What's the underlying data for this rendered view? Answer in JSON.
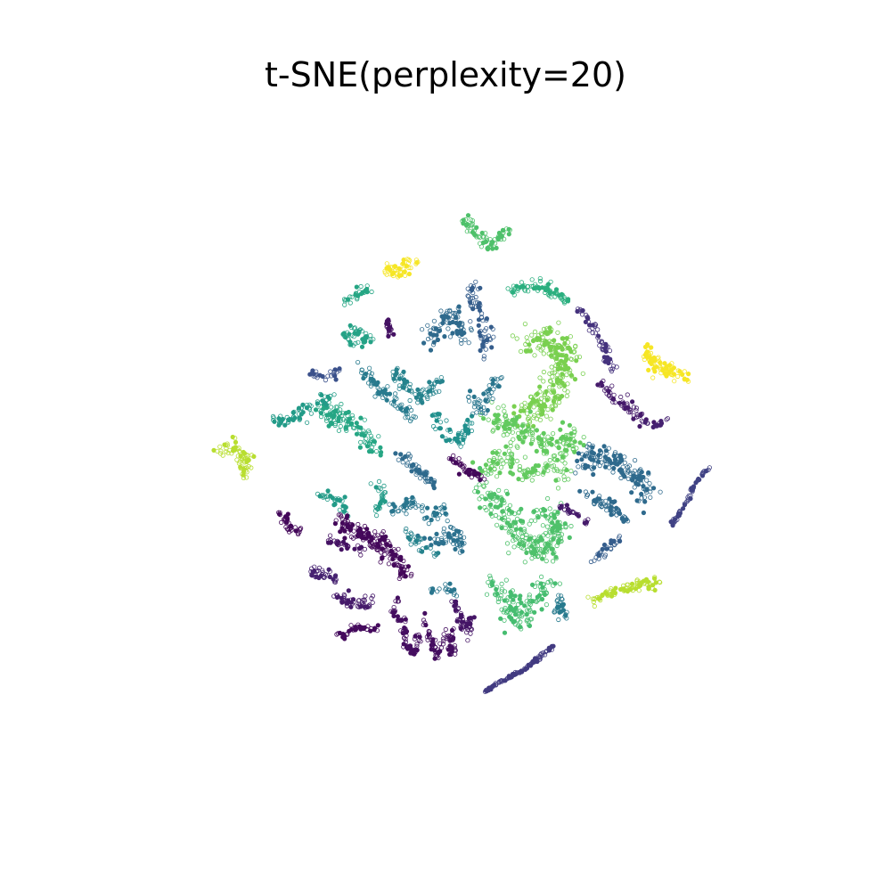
{
  "chart_data": {
    "type": "scatter",
    "title": "t-SNE(perplexity=20)",
    "xlabel": "",
    "ylabel": "",
    "axes_visible": false,
    "grid": false,
    "legend": "none",
    "xlim": [
      0,
      100
    ],
    "ylim": [
      0,
      100
    ],
    "colormap": "viridis",
    "point_style": "hollow-edge small markers",
    "clusters": [
      {
        "label_index": 0.72,
        "path": [
          [
            51.0,
            84.5
          ],
          [
            53.0,
            82.0
          ],
          [
            55.0,
            80.5
          ],
          [
            57.5,
            83.0
          ]
        ],
        "count": 70,
        "spread": 0.9
      },
      {
        "label_index": 0.99,
        "path": [
          [
            39.5,
            77.5
          ],
          [
            41.5,
            76.5
          ],
          [
            44.0,
            78.5
          ]
        ],
        "count": 45,
        "spread": 1.2
      },
      {
        "label_index": 0.6,
        "path": [
          [
            33.5,
            72.0
          ],
          [
            35.5,
            73.5
          ],
          [
            37.5,
            74.5
          ]
        ],
        "count": 25,
        "spread": 0.8
      },
      {
        "label_index": 0.58,
        "path": [
          [
            33.5,
            67.5
          ],
          [
            35.5,
            68.5
          ],
          [
            37.5,
            67.0
          ],
          [
            35.0,
            66.5
          ]
        ],
        "count": 50,
        "spread": 1.0
      },
      {
        "label_index": 0.05,
        "path": [
          [
            40.0,
            70.0
          ],
          [
            40.5,
            67.5
          ]
        ],
        "count": 25,
        "spread": 0.4
      },
      {
        "label_index": 0.64,
        "path": [
          [
            58.0,
            74.0
          ],
          [
            61.5,
            75.0
          ],
          [
            64.5,
            73.5
          ],
          [
            66.0,
            72.5
          ]
        ],
        "count": 70,
        "spread": 1.0
      },
      {
        "label_index": 0.15,
        "path": [
          [
            67.5,
            71.5
          ],
          [
            70.0,
            68.5
          ],
          [
            71.5,
            65.0
          ],
          [
            73.0,
            62.0
          ]
        ],
        "count": 55,
        "spread": 0.9
      },
      {
        "label_index": 0.08,
        "path": [
          [
            71.0,
            60.5
          ],
          [
            73.0,
            58.5
          ],
          [
            75.5,
            56.5
          ],
          [
            78.0,
            55.0
          ]
        ],
        "count": 55,
        "spread": 1.0
      },
      {
        "label_index": 0.99,
        "path": [
          [
            77.0,
            65.5
          ],
          [
            79.0,
            63.0
          ],
          [
            81.5,
            62.0
          ],
          [
            83.5,
            61.5
          ]
        ],
        "count": 85,
        "spread": 1.3
      },
      {
        "label_index": 0.9,
        "path": [
          [
            16.0,
            50.5
          ],
          [
            18.0,
            52.0
          ],
          [
            19.5,
            49.5
          ],
          [
            19.0,
            47.0
          ]
        ],
        "count": 65,
        "spread": 1.1
      },
      {
        "label_index": 0.3,
        "path": [
          [
            52.0,
            74.5
          ],
          [
            53.0,
            71.5
          ],
          [
            54.5,
            68.0
          ],
          [
            53.5,
            65.0
          ]
        ],
        "count": 65,
        "spread": 1.4
      },
      {
        "label_index": 0.35,
        "path": [
          [
            45.5,
            66.5
          ],
          [
            47.5,
            69.0
          ],
          [
            49.5,
            70.5
          ],
          [
            51.0,
            67.0
          ]
        ],
        "count": 80,
        "spread": 1.6
      },
      {
        "label_index": 0.8,
        "path": [
          [
            60.0,
            66.5
          ],
          [
            63.5,
            67.0
          ],
          [
            66.0,
            65.0
          ],
          [
            65.0,
            61.0
          ],
          [
            62.5,
            57.5
          ],
          [
            59.5,
            55.5
          ]
        ],
        "count": 260,
        "spread": 2.6
      },
      {
        "label_index": 0.76,
        "path": [
          [
            55.0,
            56.5
          ],
          [
            58.0,
            54.0
          ],
          [
            61.0,
            53.0
          ],
          [
            64.5,
            51.0
          ],
          [
            67.5,
            53.5
          ]
        ],
        "count": 170,
        "spread": 2.2
      },
      {
        "label_index": 0.76,
        "path": [
          [
            54.0,
            48.0
          ],
          [
            57.0,
            50.0
          ],
          [
            60.0,
            47.5
          ],
          [
            63.5,
            49.0
          ],
          [
            66.0,
            46.5
          ]
        ],
        "count": 110,
        "spread": 1.8
      },
      {
        "label_index": 0.72,
        "path": [
          [
            54.0,
            45.0
          ],
          [
            57.0,
            42.0
          ],
          [
            59.5,
            38.0
          ],
          [
            62.5,
            36.0
          ],
          [
            64.5,
            39.5
          ],
          [
            62.0,
            42.5
          ]
        ],
        "count": 250,
        "spread": 2.4
      },
      {
        "label_index": 0.7,
        "path": [
          [
            55.0,
            32.0
          ],
          [
            57.5,
            29.0
          ],
          [
            58.5,
            25.5
          ],
          [
            61.5,
            29.5
          ],
          [
            63.5,
            32.0
          ]
        ],
        "count": 140,
        "spread": 1.9
      },
      {
        "label_index": 0.6,
        "path": [
          [
            30.0,
            57.0
          ],
          [
            33.0,
            55.5
          ],
          [
            36.0,
            54.0
          ],
          [
            38.0,
            51.0
          ]
        ],
        "count": 110,
        "spread": 1.6
      },
      {
        "label_index": 0.55,
        "path": [
          [
            23.5,
            54.5
          ],
          [
            26.0,
            55.5
          ],
          [
            29.5,
            57.5
          ],
          [
            32.0,
            58.5
          ]
        ],
        "count": 60,
        "spread": 1.2
      },
      {
        "label_index": 0.42,
        "path": [
          [
            36.0,
            63.0
          ],
          [
            38.5,
            60.0
          ],
          [
            41.0,
            58.0
          ],
          [
            44.0,
            55.5
          ]
        ],
        "count": 75,
        "spread": 1.1
      },
      {
        "label_index": 0.45,
        "path": [
          [
            41.0,
            62.5
          ],
          [
            43.5,
            59.0
          ],
          [
            45.5,
            58.5
          ],
          [
            47.5,
            61.5
          ]
        ],
        "count": 70,
        "spread": 1.2
      },
      {
        "label_index": 0.5,
        "path": [
          [
            46.5,
            56.0
          ],
          [
            48.5,
            53.5
          ],
          [
            50.5,
            52.0
          ],
          [
            52.0,
            55.0
          ]
        ],
        "count": 55,
        "spread": 1.0
      },
      {
        "label_index": 0.4,
        "path": [
          [
            51.5,
            59.0
          ],
          [
            53.5,
            56.5
          ],
          [
            55.0,
            59.5
          ],
          [
            56.5,
            61.5
          ]
        ],
        "count": 50,
        "spread": 1.0
      },
      {
        "label_index": 0.25,
        "path": [
          [
            29.0,
            62.0
          ],
          [
            31.0,
            61.5
          ],
          [
            33.0,
            62.5
          ]
        ],
        "count": 25,
        "spread": 0.7
      },
      {
        "label_index": 0.02,
        "path": [
          [
            49.0,
            50.0
          ],
          [
            51.5,
            48.0
          ],
          [
            53.5,
            47.0
          ]
        ],
        "count": 45,
        "spread": 0.7
      },
      {
        "label_index": 0.35,
        "path": [
          [
            42.0,
            50.5
          ],
          [
            44.5,
            48.0
          ],
          [
            46.5,
            46.0
          ]
        ],
        "count": 55,
        "spread": 1.0
      },
      {
        "label_index": 0.55,
        "path": [
          [
            38.0,
            46.5
          ],
          [
            39.5,
            45.0
          ],
          [
            38.5,
            42.0
          ]
        ],
        "count": 30,
        "spread": 0.6
      },
      {
        "label_index": 0.55,
        "path": [
          [
            30.5,
            44.5
          ],
          [
            33.0,
            43.5
          ],
          [
            34.5,
            42.0
          ]
        ],
        "count": 35,
        "spread": 0.9
      },
      {
        "label_index": 0.4,
        "path": [
          [
            41.0,
            42.0
          ],
          [
            44.0,
            43.5
          ],
          [
            46.5,
            41.5
          ],
          [
            48.5,
            42.5
          ]
        ],
        "count": 60,
        "spread": 1.1
      },
      {
        "label_index": 0.38,
        "path": [
          [
            45.0,
            38.5
          ],
          [
            47.5,
            37.5
          ],
          [
            49.5,
            39.0
          ],
          [
            51.0,
            36.5
          ]
        ],
        "count": 60,
        "spread": 1.2
      },
      {
        "label_index": 0.02,
        "path": [
          [
            24.5,
            42.0
          ],
          [
            26.0,
            39.5
          ],
          [
            27.5,
            39.0
          ]
        ],
        "count": 35,
        "spread": 0.6
      },
      {
        "label_index": 0.02,
        "path": [
          [
            33.0,
            41.0
          ],
          [
            35.0,
            39.0
          ],
          [
            37.0,
            38.5
          ],
          [
            39.0,
            37.5
          ],
          [
            41.0,
            35.5
          ],
          [
            42.5,
            33.0
          ]
        ],
        "count": 160,
        "spread": 1.5
      },
      {
        "label_index": 0.05,
        "path": [
          [
            31.5,
            38.0
          ],
          [
            34.0,
            37.0
          ],
          [
            36.5,
            36.0
          ]
        ],
        "count": 30,
        "spread": 0.8
      },
      {
        "label_index": 0.1,
        "path": [
          [
            29.0,
            33.5
          ],
          [
            31.0,
            33.0
          ],
          [
            33.0,
            32.0
          ]
        ],
        "count": 35,
        "spread": 0.9
      },
      {
        "label_index": 0.08,
        "path": [
          [
            32.0,
            30.0
          ],
          [
            34.0,
            29.0
          ],
          [
            36.0,
            28.5
          ],
          [
            38.0,
            29.5
          ]
        ],
        "count": 50,
        "spread": 1.0
      },
      {
        "label_index": 0.03,
        "path": [
          [
            32.0,
            25.0
          ],
          [
            33.5,
            24.0
          ],
          [
            36.0,
            25.5
          ],
          [
            38.5,
            25.0
          ]
        ],
        "count": 35,
        "spread": 0.8
      },
      {
        "label_index": 0.04,
        "path": [
          [
            41.5,
            29.5
          ],
          [
            41.0,
            27.0
          ],
          [
            42.5,
            26.0
          ]
        ],
        "count": 20,
        "spread": 0.5
      },
      {
        "label_index": 0.04,
        "path": [
          [
            42.5,
            25.5
          ],
          [
            42.5,
            22.5
          ],
          [
            44.0,
            21.5
          ],
          [
            44.5,
            24.5
          ]
        ],
        "count": 45,
        "spread": 0.5
      },
      {
        "label_index": 0.04,
        "path": [
          [
            45.0,
            26.5
          ],
          [
            46.5,
            23.0
          ],
          [
            47.0,
            21.0
          ],
          [
            48.5,
            24.5
          ],
          [
            49.5,
            21.5
          ],
          [
            49.5,
            25.0
          ]
        ],
        "count": 75,
        "spread": 0.6
      },
      {
        "label_index": 0.06,
        "path": [
          [
            49.5,
            29.0
          ],
          [
            50.5,
            26.5
          ],
          [
            51.5,
            24.0
          ],
          [
            52.0,
            27.0
          ]
        ],
        "count": 50,
        "spread": 0.6
      },
      {
        "label_index": 0.4,
        "path": [
          [
            46.5,
            30.5
          ],
          [
            48.5,
            31.0
          ],
          [
            50.0,
            30.0
          ]
        ],
        "count": 20,
        "spread": 0.6
      },
      {
        "label_index": 0.45,
        "path": [
          [
            42.5,
            39.5
          ],
          [
            45.0,
            37.0
          ],
          [
            47.5,
            35.5
          ]
        ],
        "count": 30,
        "spread": 0.9
      },
      {
        "label_index": 0.42,
        "path": [
          [
            64.5,
            27.0
          ],
          [
            65.0,
            29.5
          ],
          [
            66.0,
            26.5
          ]
        ],
        "count": 30,
        "spread": 0.6
      },
      {
        "label_index": 0.3,
        "path": [
          [
            69.5,
            35.0
          ],
          [
            71.5,
            36.5
          ],
          [
            74.0,
            38.5
          ]
        ],
        "count": 30,
        "spread": 0.6
      },
      {
        "label_index": 0.35,
        "path": [
          [
            68.5,
            48.5
          ],
          [
            70.5,
            51.5
          ],
          [
            72.5,
            49.5
          ],
          [
            74.5,
            48.0
          ],
          [
            76.5,
            47.0
          ],
          [
            77.5,
            44.0
          ]
        ],
        "count": 150,
        "spread": 1.9
      },
      {
        "label_index": 0.35,
        "path": [
          [
            69.0,
            44.5
          ],
          [
            71.5,
            43.0
          ],
          [
            73.5,
            42.0
          ],
          [
            75.0,
            40.5
          ]
        ],
        "count": 60,
        "spread": 1.2
      },
      {
        "label_index": 0.08,
        "path": [
          [
            65.0,
            43.0
          ],
          [
            67.5,
            41.5
          ],
          [
            69.0,
            40.5
          ]
        ],
        "count": 25,
        "spread": 0.5
      },
      {
        "label_index": 0.1,
        "path": [
          [
            77.0,
            55.0
          ],
          [
            79.0,
            54.5
          ],
          [
            81.0,
            55.5
          ]
        ],
        "count": 18,
        "spread": 0.4
      },
      {
        "label_index": 0.2,
        "path": [
          [
            81.0,
            40.0
          ],
          [
            83.0,
            43.0
          ],
          [
            84.5,
            46.0
          ],
          [
            86.5,
            48.5
          ]
        ],
        "count": 60,
        "spread": 0.3
      },
      {
        "label_index": 0.9,
        "path": [
          [
            69.5,
            29.0
          ],
          [
            72.0,
            30.5
          ],
          [
            75.0,
            31.0
          ],
          [
            78.0,
            31.5
          ],
          [
            79.5,
            32.0
          ]
        ],
        "count": 80,
        "spread": 0.9
      },
      {
        "label_index": 0.18,
        "path": [
          [
            54.0,
            16.0
          ],
          [
            57.0,
            17.8
          ],
          [
            60.0,
            19.2
          ],
          [
            62.0,
            21.0
          ],
          [
            64.0,
            22.5
          ]
        ],
        "count": 100,
        "spread": 0.3
      }
    ]
  }
}
